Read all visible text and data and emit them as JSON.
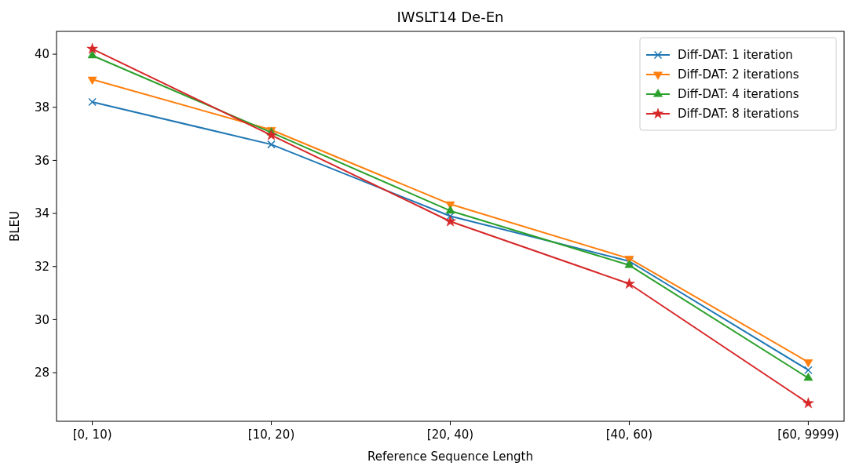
{
  "chart_data": {
    "type": "line",
    "title": "IWSLT14 De-En",
    "xlabel": "Reference Sequence Length",
    "ylabel": "BLEU",
    "categories": [
      "[0, 10)",
      "[10, 20)",
      "[20, 40)",
      "[40, 60)",
      "[60, 9999)"
    ],
    "series": [
      {
        "name": "Diff-DAT: 1 iteration",
        "color": "#1f77b4",
        "marker": "cross",
        "values": [
          38.2,
          36.6,
          33.9,
          32.2,
          28.1
        ]
      },
      {
        "name": "Diff-DAT: 2 iterations",
        "color": "#ff7f0e",
        "marker": "triangle-down",
        "values": [
          39.05,
          37.15,
          34.35,
          32.3,
          28.4
        ]
      },
      {
        "name": "Diff-DAT: 4 iterations",
        "color": "#2ca02c",
        "marker": "triangle",
        "values": [
          39.95,
          37.05,
          34.1,
          32.05,
          27.8
        ]
      },
      {
        "name": "Diff-DAT: 8 iterations",
        "color": "#d62728",
        "marker": "star",
        "values": [
          40.2,
          36.95,
          33.7,
          31.35,
          26.85
        ]
      }
    ],
    "ylim": [
      26.17,
      40.86
    ],
    "yticks": [
      28,
      30,
      32,
      34,
      36,
      38,
      40
    ],
    "grid": false,
    "legend": "top right",
    "line_style": "solid"
  }
}
